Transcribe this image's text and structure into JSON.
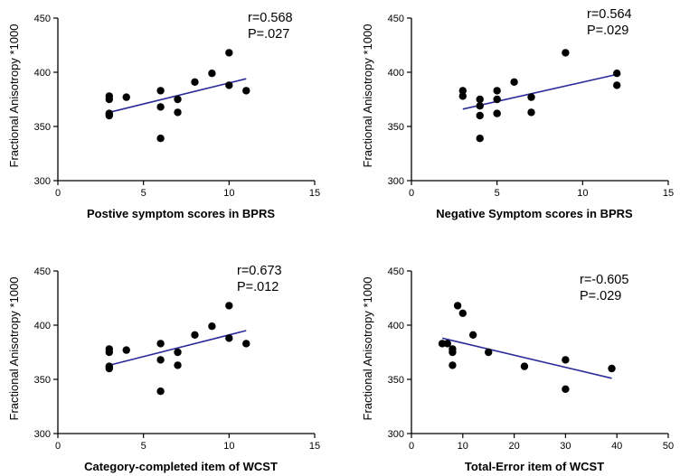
{
  "chart_data": [
    {
      "type": "scatter",
      "xlabel": "Postive symptom scores in BPRS",
      "ylabel": "Fractional Anisotropy *1000",
      "xlim": [
        0,
        15
      ],
      "ylim": [
        300,
        450
      ],
      "xticks": [
        0,
        5,
        10,
        15
      ],
      "yticks": [
        300,
        350,
        400,
        450
      ],
      "annotations": [
        "r=0.568",
        "P=.027"
      ],
      "points": [
        {
          "x": 3,
          "y": 378
        },
        {
          "x": 3,
          "y": 375
        },
        {
          "x": 3,
          "y": 362
        },
        {
          "x": 3,
          "y": 360
        },
        {
          "x": 4,
          "y": 377
        },
        {
          "x": 6,
          "y": 383
        },
        {
          "x": 6,
          "y": 368
        },
        {
          "x": 6,
          "y": 339
        },
        {
          "x": 7,
          "y": 375
        },
        {
          "x": 7,
          "y": 363
        },
        {
          "x": 8,
          "y": 391
        },
        {
          "x": 9,
          "y": 399
        },
        {
          "x": 10,
          "y": 418
        },
        {
          "x": 10,
          "y": 388
        },
        {
          "x": 11,
          "y": 383
        }
      ],
      "fit_line": [
        {
          "x": 3,
          "y": 363
        },
        {
          "x": 11,
          "y": 394
        }
      ]
    },
    {
      "type": "scatter",
      "xlabel": "Negative Symptom scores in BPRS",
      "ylabel": "Fractional Anisotropy *1000",
      "xlim": [
        0,
        15
      ],
      "ylim": [
        300,
        450
      ],
      "xticks": [
        0,
        5,
        10,
        15
      ],
      "yticks": [
        300,
        350,
        400,
        450
      ],
      "annotations": [
        "r=0.564",
        "P=.029"
      ],
      "points": [
        {
          "x": 3,
          "y": 383
        },
        {
          "x": 3,
          "y": 378
        },
        {
          "x": 4,
          "y": 375
        },
        {
          "x": 4,
          "y": 369
        },
        {
          "x": 4,
          "y": 360
        },
        {
          "x": 4,
          "y": 339
        },
        {
          "x": 5,
          "y": 383
        },
        {
          "x": 5,
          "y": 375
        },
        {
          "x": 5,
          "y": 362
        },
        {
          "x": 6,
          "y": 391
        },
        {
          "x": 7,
          "y": 377
        },
        {
          "x": 7,
          "y": 363
        },
        {
          "x": 9,
          "y": 418
        },
        {
          "x": 12,
          "y": 399
        },
        {
          "x": 12,
          "y": 388
        }
      ],
      "fit_line": [
        {
          "x": 3,
          "y": 366
        },
        {
          "x": 12,
          "y": 398
        }
      ]
    },
    {
      "type": "scatter",
      "xlabel": "Category-completed item of WCST",
      "ylabel": "Fractional Anisotropy *1000",
      "xlim": [
        0,
        15
      ],
      "ylim": [
        300,
        450
      ],
      "xticks": [
        0,
        5,
        10,
        15
      ],
      "yticks": [
        300,
        350,
        400,
        450
      ],
      "annotations": [
        "r=0.673",
        "P=.012"
      ],
      "points": [
        {
          "x": 3,
          "y": 378
        },
        {
          "x": 3,
          "y": 375
        },
        {
          "x": 3,
          "y": 362
        },
        {
          "x": 3,
          "y": 360
        },
        {
          "x": 4,
          "y": 377
        },
        {
          "x": 6,
          "y": 383
        },
        {
          "x": 6,
          "y": 368
        },
        {
          "x": 6,
          "y": 339
        },
        {
          "x": 7,
          "y": 375
        },
        {
          "x": 7,
          "y": 363
        },
        {
          "x": 8,
          "y": 391
        },
        {
          "x": 9,
          "y": 399
        },
        {
          "x": 10,
          "y": 418
        },
        {
          "x": 10,
          "y": 388
        },
        {
          "x": 11,
          "y": 383
        }
      ],
      "fit_line": [
        {
          "x": 3,
          "y": 363
        },
        {
          "x": 11,
          "y": 395
        }
      ]
    },
    {
      "type": "scatter",
      "xlabel": "Total-Error item of WCST",
      "ylabel": "Fractional Anisotropy *1000",
      "xlim": [
        0,
        50
      ],
      "ylim": [
        300,
        450
      ],
      "xticks": [
        0,
        10,
        20,
        30,
        40,
        50
      ],
      "yticks": [
        300,
        350,
        400,
        450
      ],
      "annotations": [
        "r=-0.605",
        "P=.029"
      ],
      "points": [
        {
          "x": 6,
          "y": 383
        },
        {
          "x": 7,
          "y": 383
        },
        {
          "x": 8,
          "y": 378
        },
        {
          "x": 8,
          "y": 375
        },
        {
          "x": 8,
          "y": 363
        },
        {
          "x": 9,
          "y": 418
        },
        {
          "x": 10,
          "y": 411
        },
        {
          "x": 12,
          "y": 391
        },
        {
          "x": 15,
          "y": 375
        },
        {
          "x": 22,
          "y": 362
        },
        {
          "x": 30,
          "y": 368
        },
        {
          "x": 30,
          "y": 341
        },
        {
          "x": 39,
          "y": 360
        }
      ],
      "fit_line": [
        {
          "x": 6,
          "y": 388
        },
        {
          "x": 39,
          "y": 351
        }
      ]
    }
  ]
}
